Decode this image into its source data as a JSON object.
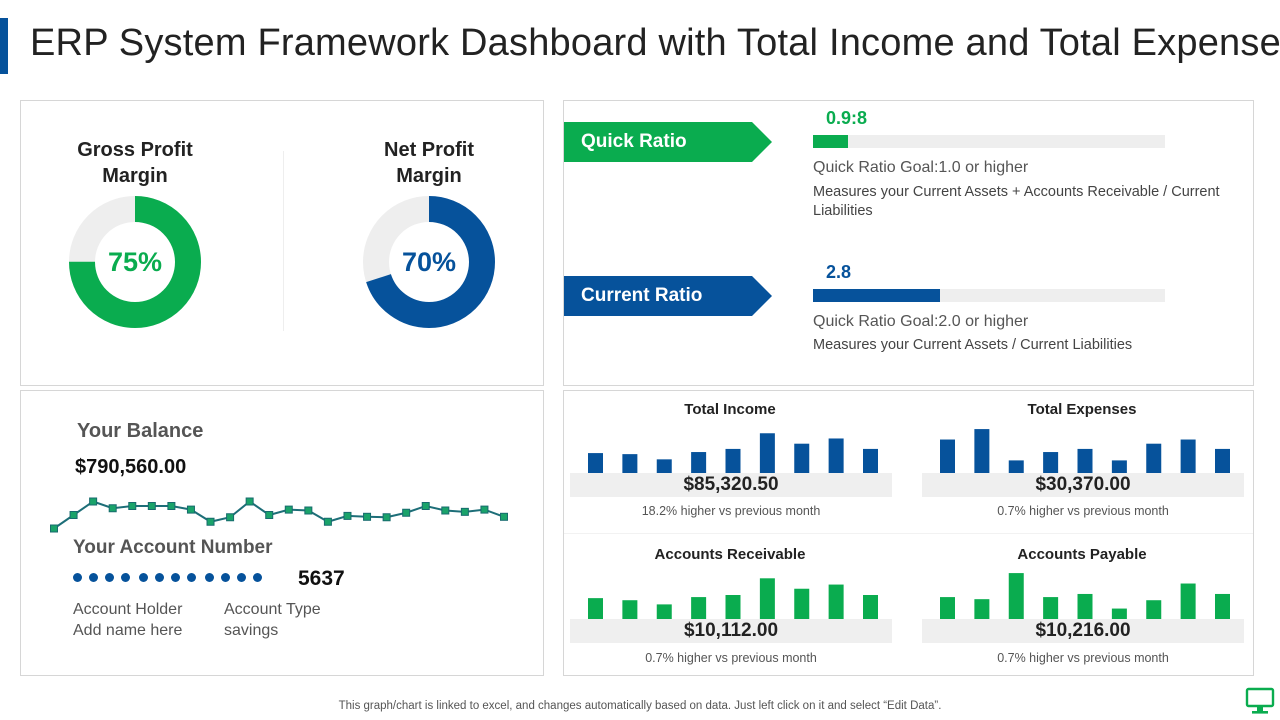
{
  "title": "ERP System Framework Dashboard with Total Income and Total Expenses",
  "colors": {
    "green": "#0aac4f",
    "blue": "#06529b",
    "track": "#eeeeee",
    "dot": "#06529b"
  },
  "margins": {
    "gross": {
      "label": "Gross Profit Margin",
      "value": 75,
      "display": "75%",
      "color": "#0aac4f"
    },
    "net": {
      "label": "Net Profit Margin",
      "value": 70,
      "display": "70%",
      "color": "#06529b"
    }
  },
  "ratios": {
    "quick": {
      "label": "Quick Ratio",
      "value": "0.9:8",
      "fill_fraction": 0.1,
      "goal": "Quick Ratio Goal:1.0  or higher",
      "description": "Measures your Current Assets + Accounts Receivable / Current Liabilities",
      "color": "#0aac4f"
    },
    "current": {
      "label": "Current Ratio",
      "value": "2.8",
      "fill_fraction": 0.36,
      "goal": "Quick Ratio Goal:2.0  or higher",
      "description": "Measures your Current Assets / Current Liabilities",
      "color": "#06529b"
    }
  },
  "balance": {
    "label": "Your Balance",
    "amount": "$790,560.00",
    "trend": [
      5,
      8,
      11,
      9.5,
      10,
      10,
      10,
      9.2,
      6.5,
      7.5,
      11,
      8,
      9.2,
      9,
      6.5,
      7.8,
      7.6,
      7.5,
      8.5,
      10,
      9,
      8.7,
      9.2,
      7.6
    ]
  },
  "account": {
    "label": "Your Account Number",
    "masked_groups": 3,
    "digits_per_group": 4,
    "last_digits": "5637",
    "holder_label": "Account Holder",
    "holder_value": "Add name here",
    "type_label": "Account Type",
    "type_value": "savings"
  },
  "kpis": [
    {
      "title": "Total Income",
      "value": "$85,320.50",
      "note": "18.2% higher vs previous month",
      "color": "#06529b",
      "bars": [
        21,
        20,
        15,
        22,
        25,
        40,
        30,
        35,
        25
      ]
    },
    {
      "title": "Total Expenses",
      "value": "$30,370.00",
      "note": "0.7% higher vs  previous  month",
      "color": "#06529b",
      "bars": [
        34,
        44,
        14,
        22,
        25,
        14,
        30,
        34,
        25
      ]
    },
    {
      "title": "Accounts Receivable",
      "value": "$10,112.00",
      "note": "0.7% higher vs  previous  month",
      "color": "#0aac4f",
      "bars": [
        20,
        18,
        14,
        21,
        23,
        39,
        29,
        33,
        23
      ]
    },
    {
      "title": "Accounts Payable",
      "value": "$10,216.00",
      "note": "0.7% higher vs  previous  month",
      "color": "#0aac4f",
      "bars": [
        21,
        19,
        44,
        21,
        24,
        10,
        18,
        34,
        24
      ]
    }
  ],
  "footer": "This graph/chart is linked to excel,  and changes automatically based on data. Just left click on it and select “Edit Data”.",
  "icons": {
    "footer_icon": "monitor-icon"
  }
}
